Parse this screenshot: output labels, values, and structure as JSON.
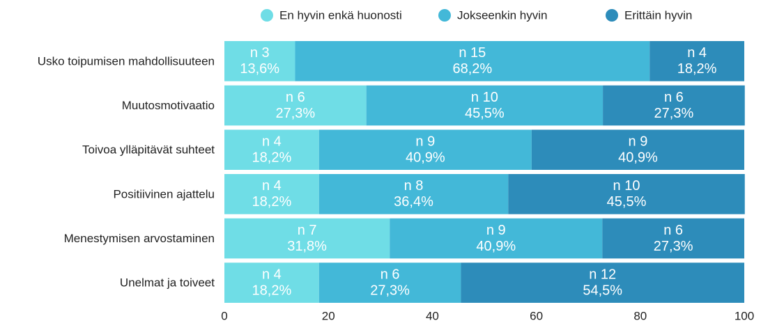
{
  "chart_data": {
    "type": "stacked-barh",
    "categories": [
      "Usko toipumisen mahdollisuuteen",
      "Muutosmotivaatio",
      "Toivoa ylläpitävät suhteet",
      "Positiivinen ajattelu",
      "Menestymisen arvostaminen",
      "Unelmat ja toiveet"
    ],
    "series": [
      {
        "name": "En hyvin enkä huonosti",
        "color": "#6fdde6",
        "values": [
          13.6,
          27.3,
          18.2,
          18.2,
          31.8,
          18.2
        ],
        "value_labels": [
          "13,6%",
          "27,3%",
          "18,2%",
          "18,2%",
          "31,8%",
          "18,2%"
        ],
        "count_labels": [
          "n 3",
          "n 6",
          "n 4",
          "n 4",
          "n 7",
          "n 4"
        ]
      },
      {
        "name": "Jokseenkin hyvin",
        "color": "#43b8d8",
        "values": [
          68.2,
          45.5,
          40.9,
          36.4,
          40.9,
          27.3
        ],
        "value_labels": [
          "68,2%",
          "45,5%",
          "40,9%",
          "36,4%",
          "40,9%",
          "27,3%"
        ],
        "count_labels": [
          "n 15",
          "n 10",
          "n 9",
          "n 8",
          "n 9",
          "n 6"
        ]
      },
      {
        "name": "Erittäin hyvin",
        "color": "#2d8cba",
        "values": [
          18.2,
          27.3,
          40.9,
          45.5,
          27.3,
          54.5
        ],
        "value_labels": [
          "18,2%",
          "27,3%",
          "40,9%",
          "45,5%",
          "27,3%",
          "54,5%"
        ],
        "count_labels": [
          "n 4",
          "n 6",
          "n 9",
          "n 10",
          "n 6",
          "n 12"
        ]
      }
    ],
    "xlim": [
      0,
      100
    ],
    "xticks": [
      0,
      20,
      40,
      60,
      80,
      100
    ],
    "legend": "top"
  }
}
